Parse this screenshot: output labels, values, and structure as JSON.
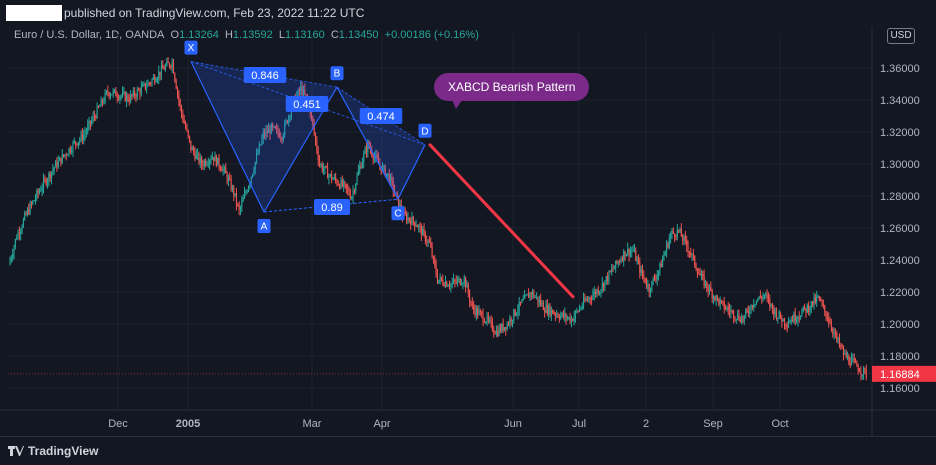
{
  "header": {
    "published_text": "published on TradingView.com, Feb 23, 2022 11:22 UTC"
  },
  "legend": {
    "symbol": "Euro / U.S. Dollar, 1D, OANDA",
    "o_label": "O",
    "o_value": "1.13264",
    "h_label": "H",
    "h_value": "1.13592",
    "l_label": "L",
    "l_value": "1.13160",
    "c_label": "C",
    "c_value": "1.13450",
    "change": "+0.00186 (+0.16%)"
  },
  "currency_button": "USD",
  "annotation": {
    "text": "XABCD Bearish Pattern"
  },
  "footer": {
    "brand": "TradingView"
  },
  "colors": {
    "background": "#131722",
    "up": "#26a69a",
    "down": "#ef5350",
    "pattern_blue": "#2962ff",
    "trend_red": "#f23645",
    "annotation": "#7b2a8a",
    "price_tag": "#f23645"
  },
  "chart_data": {
    "type": "candlestick",
    "y_ticks": [
      "1.36000",
      "1.34000",
      "1.32000",
      "1.30000",
      "1.28000",
      "1.26000",
      "1.24000",
      "1.22000",
      "1.20000",
      "1.18000",
      "1.16000"
    ],
    "x_labels": [
      "Dec",
      "2005",
      "Mar",
      "Apr",
      "Jun",
      "Jul",
      "2",
      "Sep",
      "Oct"
    ],
    "current_price": "1.16884",
    "ylim": [
      1.155,
      1.372
    ],
    "xabcd": {
      "points": [
        {
          "label": "X",
          "price": 1.364
        },
        {
          "label": "A",
          "price": 1.27
        },
        {
          "label": "B",
          "price": 1.348
        },
        {
          "label": "C",
          "price": 1.278
        },
        {
          "label": "D",
          "price": 1.312
        }
      ],
      "ratios": [
        {
          "label": "0.846"
        },
        {
          "label": "0.451"
        },
        {
          "label": "0.474"
        },
        {
          "label": "0.89"
        }
      ]
    },
    "trendline": {
      "from_price": 1.312,
      "to_price": 1.217
    },
    "anchors": [
      [
        0,
        1.237
      ],
      [
        6,
        1.255
      ],
      [
        14,
        1.27
      ],
      [
        24,
        1.285
      ],
      [
        34,
        1.298
      ],
      [
        48,
        1.312
      ],
      [
        56,
        1.318
      ],
      [
        64,
        1.33
      ],
      [
        74,
        1.345
      ],
      [
        80,
        1.344
      ],
      [
        90,
        1.341
      ],
      [
        104,
        1.35
      ],
      [
        116,
        1.36
      ],
      [
        122,
        1.364
      ],
      [
        128,
        1.335
      ],
      [
        136,
        1.31
      ],
      [
        144,
        1.3
      ],
      [
        152,
        1.305
      ],
      [
        160,
        1.297
      ],
      [
        168,
        1.282
      ],
      [
        172,
        1.27
      ],
      [
        180,
        1.29
      ],
      [
        190,
        1.318
      ],
      [
        196,
        1.322
      ],
      [
        204,
        1.318
      ],
      [
        212,
        1.338
      ],
      [
        218,
        1.347
      ],
      [
        224,
        1.338
      ],
      [
        232,
        1.3
      ],
      [
        240,
        1.292
      ],
      [
        250,
        1.286
      ],
      [
        256,
        1.28
      ],
      [
        262,
        1.298
      ],
      [
        268,
        1.312
      ],
      [
        276,
        1.3
      ],
      [
        284,
        1.292
      ],
      [
        294,
        1.268
      ],
      [
        304,
        1.263
      ],
      [
        314,
        1.25
      ],
      [
        320,
        1.228
      ],
      [
        330,
        1.225
      ],
      [
        340,
        1.228
      ],
      [
        346,
        1.21
      ],
      [
        356,
        1.203
      ],
      [
        364,
        1.195
      ],
      [
        372,
        1.2
      ],
      [
        380,
        1.21
      ],
      [
        390,
        1.22
      ],
      [
        400,
        1.21
      ],
      [
        410,
        1.206
      ],
      [
        420,
        1.203
      ],
      [
        430,
        1.214
      ],
      [
        442,
        1.223
      ],
      [
        450,
        1.233
      ],
      [
        460,
        1.245
      ],
      [
        466,
        1.246
      ],
      [
        472,
        1.232
      ],
      [
        478,
        1.222
      ],
      [
        486,
        1.235
      ],
      [
        494,
        1.256
      ],
      [
        500,
        1.258
      ],
      [
        508,
        1.246
      ],
      [
        516,
        1.23
      ],
      [
        524,
        1.22
      ],
      [
        532,
        1.212
      ],
      [
        540,
        1.207
      ],
      [
        548,
        1.203
      ],
      [
        556,
        1.214
      ],
      [
        564,
        1.218
      ],
      [
        572,
        1.207
      ],
      [
        580,
        1.201
      ],
      [
        588,
        1.205
      ],
      [
        596,
        1.21
      ],
      [
        604,
        1.216
      ],
      [
        612,
        1.203
      ],
      [
        618,
        1.19
      ],
      [
        624,
        1.18
      ],
      [
        632,
        1.174
      ],
      [
        638,
        1.17
      ],
      [
        640,
        1.169
      ]
    ]
  }
}
